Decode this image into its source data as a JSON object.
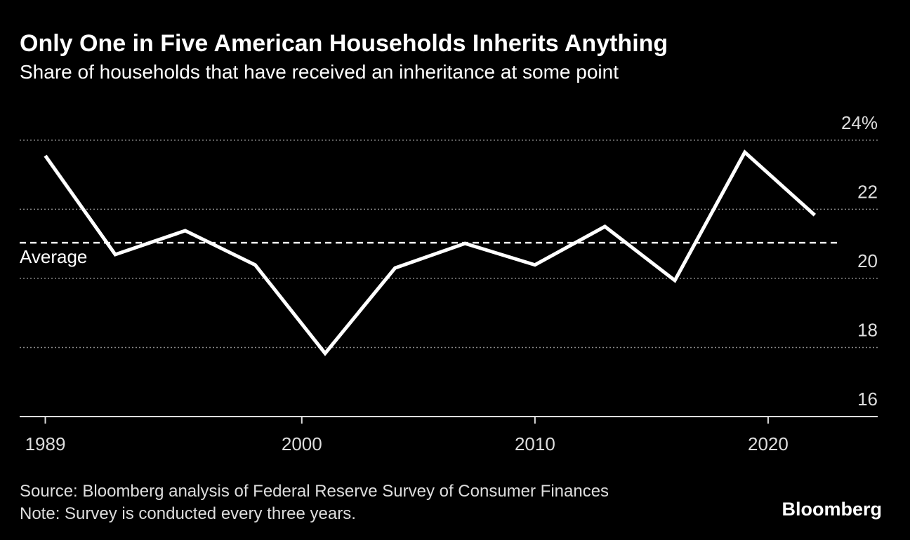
{
  "chart_data": {
    "type": "line",
    "title": "Only One in Five American Households Inherits Anything",
    "subtitle": "Share of households that have received an inheritance at some point",
    "x": [
      1989,
      1992,
      1995,
      1998,
      2001,
      2004,
      2007,
      2010,
      2013,
      2016,
      2019,
      2022
    ],
    "series": [
      {
        "color": "#ffffff",
        "values": [
          23.55,
          20.69,
          21.38,
          20.39,
          17.83,
          20.3,
          21.01,
          20.39,
          21.5,
          19.94,
          23.65,
          21.83
        ]
      }
    ],
    "average": {
      "label": "Average",
      "value": 21.03
    },
    "xlim": [
      1987.9,
      2024.7
    ],
    "xticks": [
      1989,
      2000,
      2010,
      2020
    ],
    "ylim": [
      16,
      24.2
    ],
    "yticks": [
      16,
      18,
      20,
      22,
      {
        "value": 24,
        "label": "24%"
      }
    ],
    "grid": true,
    "source": "Source: Bloomberg analysis of Federal Reserve Survey of Consumer Finances",
    "note": "Note: Survey is conducted every three years.",
    "brand": "Bloomberg"
  }
}
